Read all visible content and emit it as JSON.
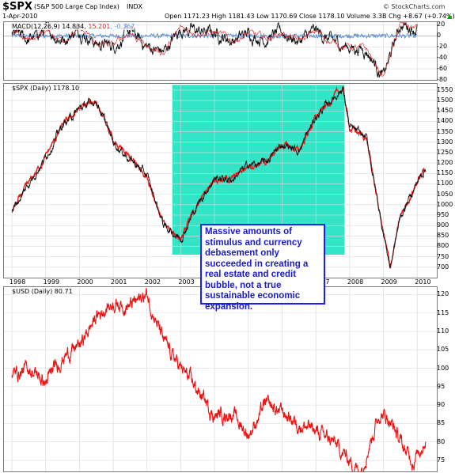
{
  "header": {
    "symbol": "$SPX",
    "description": "(S&P 500 Large Cap Index)",
    "exchange": "INDX",
    "brand": "© StockCharts.com",
    "date": "1-Apr-2010",
    "quote": "Open 1171.23  High 1181.43  Low 1170.69  Close 1178.10  Volume 3.3B  Chg +8.67 (+0.74%)",
    "chg_arrow": "▲"
  },
  "macd": {
    "label": "MACD(12,26,9) 14.834, ",
    "signal_value": "15.201",
    "hist_value": ", -0.367",
    "ticks": [
      "20",
      "0",
      "-20",
      "-40",
      "-60",
      "-80"
    ],
    "signal_color": "#d81e1e",
    "hist_color": "#5b8fd6"
  },
  "spx": {
    "label": "$SPX (Daily) 1178.10",
    "ticks": [
      "1550",
      "1500",
      "1450",
      "1400",
      "1350",
      "1300",
      "1250",
      "1200",
      "1150",
      "1100",
      "1050",
      "1000",
      "950",
      "900",
      "850",
      "800",
      "750",
      "700"
    ],
    "highlight_color": "#0fe0bd"
  },
  "usd": {
    "label": "$USD (Daily) 80.71",
    "ticks": [
      "120",
      "115",
      "110",
      "105",
      "100",
      "95",
      "90",
      "85",
      "80",
      "75"
    ],
    "line_color": "#ee1111"
  },
  "xaxis": {
    "years": [
      "1998",
      "1999",
      "2000",
      "2001",
      "2002",
      "2003",
      "2004",
      "2005",
      "2006",
      "2007",
      "2008",
      "2009",
      "2010"
    ]
  },
  "annotation": {
    "text": "Massive amounts of stimulus and currency debasement only succeeded in creating a real estate and credit bubble, not a true sustainable economic expansion."
  },
  "chart_data": [
    {
      "type": "line",
      "title": "MACD(12,26,9)",
      "x": [
        "1998",
        "1998.5",
        "1999",
        "1999.5",
        "2000",
        "2000.5",
        "2001",
        "2001.5",
        "2002",
        "2002.5",
        "2003",
        "2003.5",
        "2004",
        "2004.5",
        "2005",
        "2005.5",
        "2006",
        "2006.5",
        "2007",
        "2007.5",
        "2008",
        "2008.5",
        "2009",
        "2009.5",
        "2010"
      ],
      "series": [
        {
          "name": "MACD",
          "values": [
            5,
            -8,
            10,
            -6,
            12,
            -14,
            -18,
            8,
            -20,
            -30,
            14,
            8,
            6,
            -8,
            4,
            -5,
            6,
            -10,
            8,
            -12,
            -20,
            -25,
            -75,
            20,
            15
          ]
        }
      ],
      "ylim": [
        -80,
        25
      ]
    },
    {
      "type": "line",
      "title": "$SPX (Daily) 1178.10",
      "x": [
        "1998",
        "1998.5",
        "1999",
        "1999.5",
        "2000",
        "2000.5",
        "2001",
        "2001.5",
        "2002",
        "2002.5",
        "2003",
        "2003.5",
        "2004",
        "2004.5",
        "2005",
        "2005.5",
        "2006",
        "2006.5",
        "2007",
        "2007.5",
        "2007.8",
        "2008",
        "2008.5",
        "2008.9",
        "2009.2",
        "2009.5",
        "2010",
        "2010.25"
      ],
      "series": [
        {
          "name": "$SPX",
          "values": [
            970,
            1100,
            1230,
            1380,
            1460,
            1500,
            1300,
            1220,
            1140,
            900,
            840,
            1000,
            1130,
            1120,
            1190,
            1200,
            1290,
            1260,
            1420,
            1510,
            1560,
            1370,
            1320,
            950,
            700,
            940,
            1110,
            1178
          ]
        }
      ],
      "ylim": [
        650,
        1580
      ]
    },
    {
      "type": "line",
      "title": "$USD (Daily) 80.71",
      "x": [
        "1998",
        "1998.5",
        "1999",
        "1999.5",
        "2000",
        "2000.5",
        "2001",
        "2001.5",
        "2002",
        "2002.5",
        "2003",
        "2003.5",
        "2004",
        "2004.5",
        "2005",
        "2005.5",
        "2006",
        "2006.5",
        "2007",
        "2007.5",
        "2008",
        "2008.3",
        "2008.9",
        "2009.2",
        "2009.6",
        "2009.9",
        "2010.25"
      ],
      "series": [
        {
          "name": "$USD",
          "values": [
            98,
            100,
            96,
            103,
            106,
            114,
            118,
            117,
            120,
            107,
            100,
            94,
            87,
            88,
            82,
            90,
            88,
            85,
            83,
            80,
            75,
            72,
            88,
            86,
            78,
            75,
            81
          ]
        }
      ],
      "ylim": [
        72,
        122
      ]
    }
  ]
}
